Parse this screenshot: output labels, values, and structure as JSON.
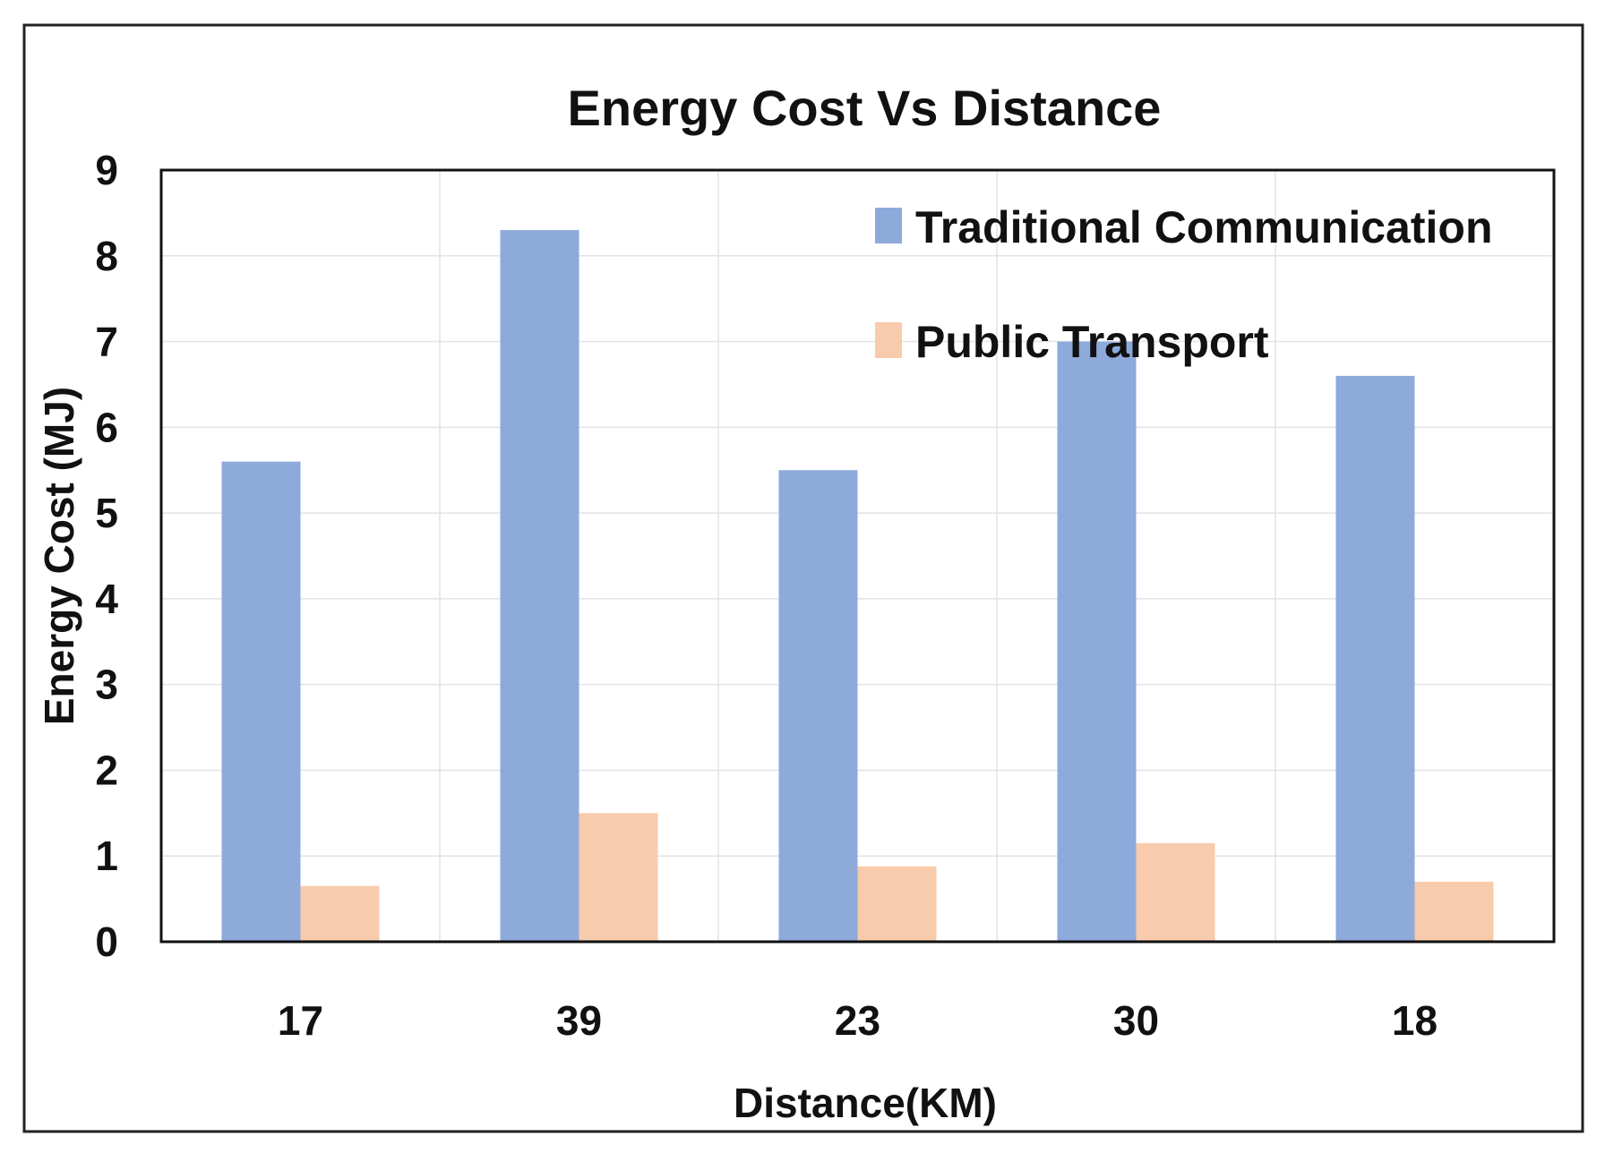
{
  "chart_data": {
    "type": "bar",
    "title": "Energy Cost Vs Distance",
    "xlabel": "Distance(KM)",
    "ylabel": "Energy Cost  (MJ)",
    "categories": [
      "17",
      "39",
      "23",
      "30",
      "18"
    ],
    "series": [
      {
        "name": "Traditional Communication",
        "color": "#8eaadb",
        "values": [
          5.6,
          8.3,
          5.5,
          7.0,
          6.6
        ]
      },
      {
        "name": "Public Transport",
        "color": "#f8cbad",
        "values": [
          0.65,
          1.5,
          0.88,
          1.15,
          0.7
        ]
      }
    ],
    "ylim": [
      0,
      9
    ],
    "yticks": [
      "0",
      "1",
      "2",
      "3",
      "4",
      "5",
      "6",
      "7",
      "8",
      "9"
    ],
    "grid": true,
    "legend_position": "top-right"
  }
}
